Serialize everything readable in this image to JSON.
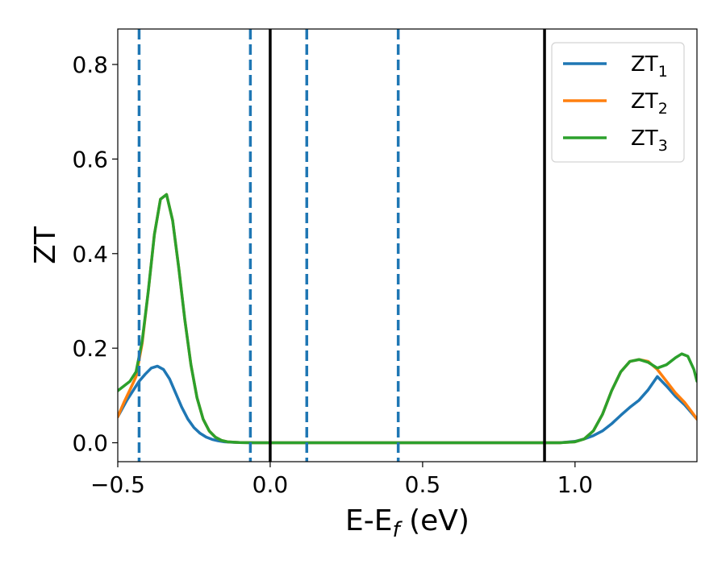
{
  "chart_data": {
    "type": "line",
    "title": "",
    "xlabel": "E-E",
    "xlabel_sub": "f",
    "xlabel_unit": " (eV)",
    "ylabel": "ZT",
    "xlim": [
      -0.5,
      1.4
    ],
    "ylim": [
      -0.04,
      0.875
    ],
    "xticks": [
      -0.5,
      0.0,
      0.5,
      1.0
    ],
    "xtick_labels": [
      "−0.5",
      "0.0",
      "0.5",
      "1.0"
    ],
    "yticks": [
      0.0,
      0.2,
      0.4,
      0.6,
      0.8
    ],
    "ytick_labels": [
      "0.0",
      "0.2",
      "0.4",
      "0.6",
      "0.8"
    ],
    "grid": false,
    "legend_position": "top-right",
    "vlines_solid": [
      0.0,
      0.9
    ],
    "vlines_dashed": [
      -0.43,
      -0.065,
      0.12,
      0.42
    ],
    "colors": {
      "vline_solid": "#000000",
      "vline_dashed": "#1f77b4"
    },
    "series": [
      {
        "name": "ZT",
        "name_sub": "1",
        "color": "#1f77b4",
        "x": [
          -0.5,
          -0.47,
          -0.45,
          -0.43,
          -0.41,
          -0.39,
          -0.37,
          -0.35,
          -0.33,
          -0.31,
          -0.29,
          -0.27,
          -0.25,
          -0.23,
          -0.21,
          -0.19,
          -0.17,
          -0.15,
          -0.12,
          -0.1,
          -0.05,
          0.0,
          0.9,
          0.95,
          1.0,
          1.03,
          1.06,
          1.09,
          1.12,
          1.15,
          1.18,
          1.21,
          1.24,
          1.27,
          1.3,
          1.33,
          1.36,
          1.38,
          1.4
        ],
        "y": [
          0.055,
          0.09,
          0.11,
          0.13,
          0.145,
          0.158,
          0.162,
          0.155,
          0.135,
          0.105,
          0.075,
          0.05,
          0.032,
          0.02,
          0.012,
          0.007,
          0.004,
          0.002,
          0.001,
          0.0005,
          0.0,
          0.0,
          0.0,
          0.0,
          0.003,
          0.008,
          0.015,
          0.025,
          0.04,
          0.058,
          0.075,
          0.09,
          0.112,
          0.14,
          0.12,
          0.098,
          0.08,
          0.065,
          0.05
        ]
      },
      {
        "name": "ZT",
        "name_sub": "2",
        "color": "#ff7f0e",
        "x": [
          -0.5,
          -0.48,
          -0.46,
          -0.44,
          -0.42,
          -0.4,
          -0.38,
          -0.36,
          -0.34,
          -0.32,
          -0.3,
          -0.28,
          -0.26,
          -0.24,
          -0.22,
          -0.2,
          -0.18,
          -0.16,
          -0.14,
          -0.1,
          -0.05,
          0.0,
          0.9,
          0.95,
          1.0,
          1.03,
          1.06,
          1.09,
          1.12,
          1.15,
          1.18,
          1.21,
          1.24,
          1.27,
          1.3,
          1.33,
          1.36,
          1.38,
          1.4
        ],
        "y": [
          0.055,
          0.085,
          0.112,
          0.14,
          0.21,
          0.32,
          0.44,
          0.515,
          0.525,
          0.47,
          0.37,
          0.26,
          0.165,
          0.095,
          0.05,
          0.025,
          0.012,
          0.005,
          0.002,
          0.0005,
          0.0,
          0.0,
          0.0,
          0.0,
          0.002,
          0.008,
          0.025,
          0.06,
          0.11,
          0.15,
          0.172,
          0.176,
          0.172,
          0.155,
          0.13,
          0.105,
          0.085,
          0.068,
          0.05
        ]
      },
      {
        "name": "ZT",
        "name_sub": "3",
        "color": "#2ca02c",
        "x": [
          -0.5,
          -0.48,
          -0.46,
          -0.44,
          -0.42,
          -0.4,
          -0.38,
          -0.36,
          -0.34,
          -0.32,
          -0.3,
          -0.28,
          -0.26,
          -0.24,
          -0.22,
          -0.2,
          -0.18,
          -0.16,
          -0.14,
          -0.1,
          -0.05,
          0.0,
          0.9,
          0.95,
          1.0,
          1.03,
          1.06,
          1.09,
          1.12,
          1.15,
          1.18,
          1.21,
          1.24,
          1.27,
          1.3,
          1.33,
          1.35,
          1.37,
          1.39,
          1.4
        ],
        "y": [
          0.11,
          0.12,
          0.13,
          0.15,
          0.215,
          0.32,
          0.44,
          0.515,
          0.525,
          0.47,
          0.37,
          0.26,
          0.165,
          0.095,
          0.05,
          0.025,
          0.012,
          0.005,
          0.002,
          0.0005,
          0.0,
          0.0,
          0.0,
          0.0,
          0.002,
          0.008,
          0.025,
          0.06,
          0.11,
          0.15,
          0.172,
          0.176,
          0.17,
          0.158,
          0.165,
          0.18,
          0.188,
          0.183,
          0.155,
          0.13
        ]
      }
    ]
  }
}
